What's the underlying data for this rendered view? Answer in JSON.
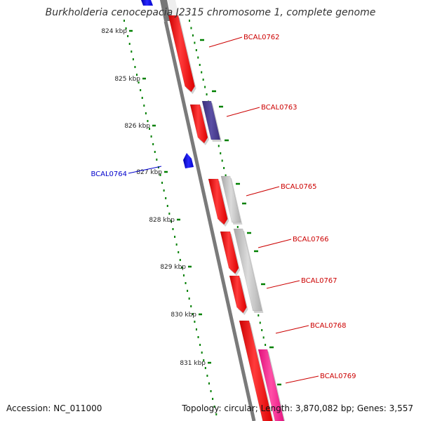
{
  "title": "Burkholderia cenocepacia J2315 chromosome 1, complete genome",
  "footer": {
    "accession": "Accession: NC_011000",
    "stats": "Topology: circular; Length: 3,870,082 bp; Genes: 3,557"
  },
  "colors": {
    "forward_gene": "#ff0000",
    "reverse_gene": "#0000ff",
    "purple_gene": "#483d8b",
    "gray_gene": "#c0c0c0",
    "pink_gene": "#ff1493",
    "backbone": "#888888",
    "tick_mark": "#008000",
    "forward_label": "#cc0000",
    "reverse_label": "#0000cc"
  },
  "axis": {
    "unit": "kbp",
    "ticks": [
      {
        "label": "824 kbp",
        "kbp": 824
      },
      {
        "label": "825 kbp",
        "kbp": 825
      },
      {
        "label": "826 kbp",
        "kbp": 826
      },
      {
        "label": "827 kbp",
        "kbp": 827
      },
      {
        "label": "828 kbp",
        "kbp": 828
      },
      {
        "label": "829 kbp",
        "kbp": 829
      },
      {
        "label": "830 kbp",
        "kbp": 830
      },
      {
        "label": "831 kbp",
        "kbp": 831
      }
    ]
  },
  "genes": [
    {
      "name": "BCAL0762",
      "strand": "forward",
      "color_key": "forward_gene"
    },
    {
      "name": "BCAL0763",
      "strand": "forward",
      "color_key": "forward_gene"
    },
    {
      "name": "BCAL0764",
      "strand": "reverse",
      "color_key": "reverse_gene"
    },
    {
      "name": "BCAL0765",
      "strand": "forward",
      "color_key": "forward_gene"
    },
    {
      "name": "BCAL0766",
      "strand": "forward",
      "color_key": "forward_gene"
    },
    {
      "name": "BCAL0767",
      "strand": "forward",
      "color_key": "forward_gene"
    },
    {
      "name": "BCAL0768",
      "strand": "forward",
      "color_key": "forward_gene"
    },
    {
      "name": "BCAL0769",
      "strand": "forward",
      "color_key": "forward_gene"
    }
  ]
}
